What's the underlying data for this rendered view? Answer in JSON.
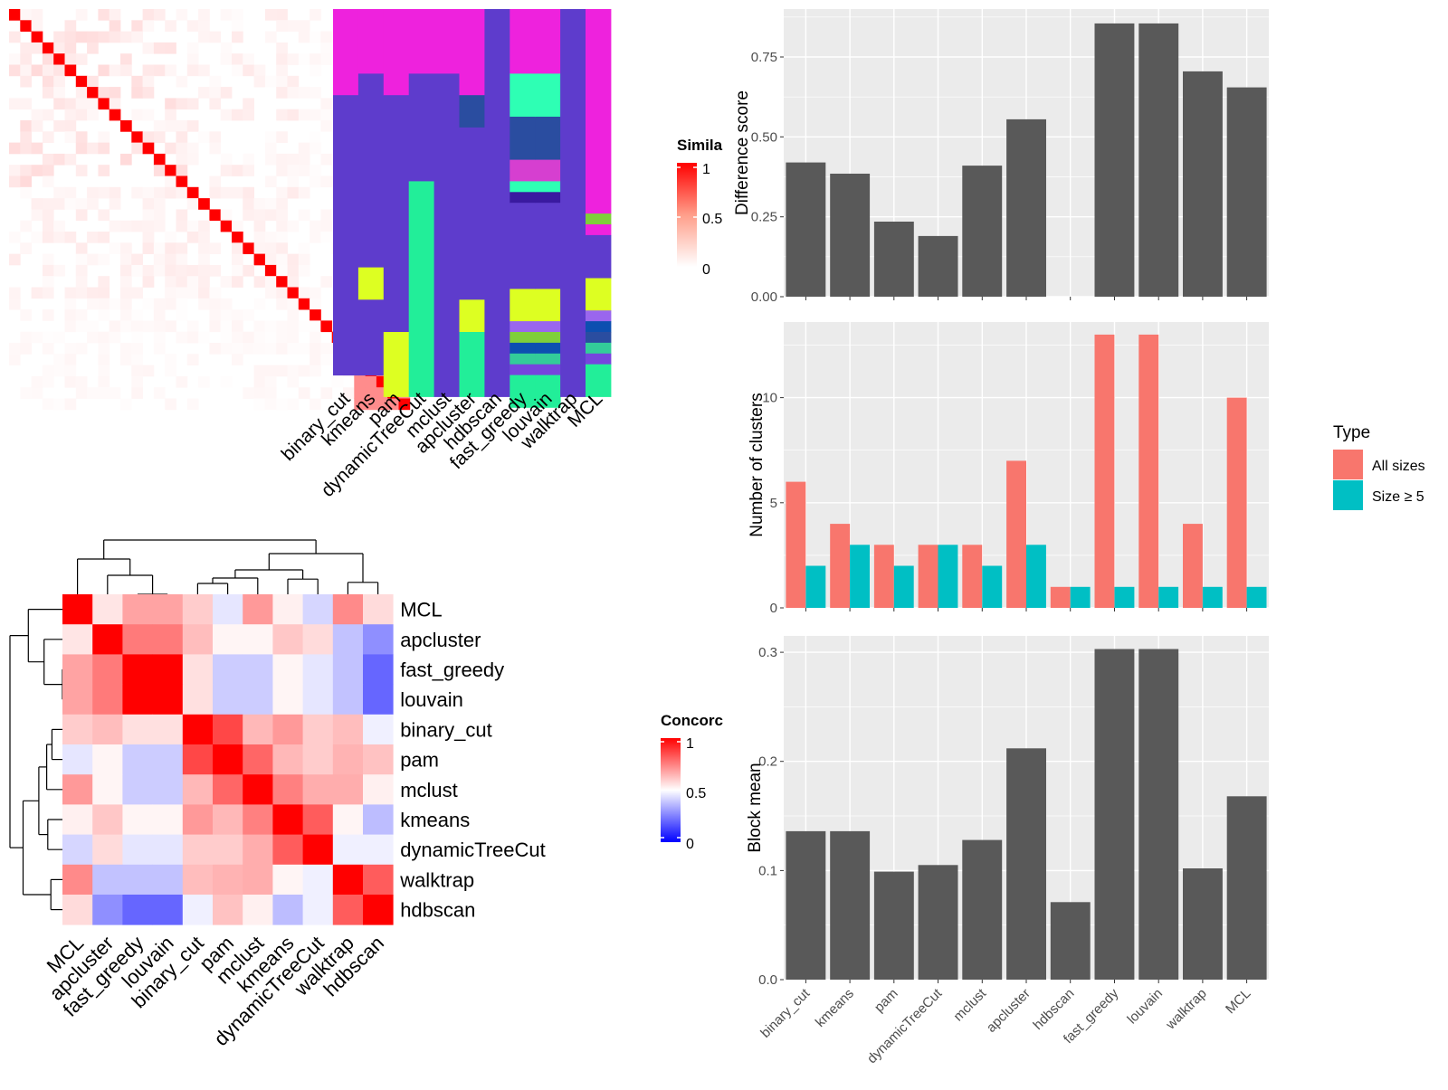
{
  "colors": {
    "panel_bg": "#ebebeb",
    "grid": "#ffffff",
    "bar": "#595959",
    "all_sizes": "#f8766d",
    "size_ge5": "#00bfc4",
    "sim_high": "#ff0000",
    "sim_low": "#ffffff",
    "conc_low": "#0000ff",
    "conc_mid": "#ffffff",
    "conc_high": "#ff0000"
  },
  "similarity_legend": {
    "title": "Simila",
    "ticks": [
      "1",
      "0.5",
      "0"
    ]
  },
  "concordance_legend": {
    "title": "Concorc",
    "ticks": [
      "1",
      "0.5",
      "0"
    ]
  },
  "chart_data": [
    {
      "type": "heatmap",
      "id": "similarity-matrix",
      "size": 36,
      "diag_value": 1,
      "block_value": 0.45,
      "legend": "Simila"
    },
    {
      "type": "heatmap",
      "id": "cluster-assignments",
      "columns": [
        "binary_cut",
        "kmeans",
        "pam",
        "dynamicTreeCut",
        "mclust",
        "apcluster",
        "hdbscan",
        "fast_greedy",
        "louvain",
        "walktrap",
        "MCL"
      ],
      "palette": {
        "A": "#ee22dd",
        "B": "#5e3ccc",
        "C": "#ddff22",
        "D": "#22ee99",
        "E": "#2a4da0",
        "F": "#2effb4",
        "G": "#d63fd0",
        "H": "#3a1aa0",
        "I": "#7fcf3a",
        "J": "#9a66ee",
        "K": "#0d4fb0",
        "L": "#33cc99",
        "M": "#7744dd"
      },
      "segments": [
        [
          "A:8",
          "B:26"
        ],
        [
          "A:6",
          "B:18",
          "C:3",
          "B:7"
        ],
        [
          "A:8",
          "B:22",
          "C:6"
        ],
        [
          "A:6",
          "B:10",
          "D:20"
        ],
        [
          "A:6",
          "B:30"
        ],
        [
          "A:8",
          "E:3",
          "B:16",
          "C:3",
          "D:6"
        ],
        [
          "B:36"
        ],
        [
          "A:6",
          "F:4",
          "E:4",
          "G:2",
          "F:1",
          "H:1",
          "B:8",
          "C:3",
          "J:1",
          "I:1",
          "K:1",
          "L:1",
          "M:1",
          "D:3"
        ],
        [
          "A:6",
          "F:4",
          "E:4",
          "G:2",
          "F:1",
          "H:1",
          "B:8",
          "C:3",
          "J:1",
          "I:1",
          "K:1",
          "L:1",
          "M:1",
          "D:3"
        ],
        [
          "B:36"
        ],
        [
          "A:19",
          "I:1",
          "A:1",
          "B:4",
          "C:3",
          "J:1",
          "K:1",
          "E:1",
          "L:1",
          "M:1",
          "D:3"
        ]
      ]
    },
    {
      "type": "heatmap",
      "id": "concordance",
      "labels": [
        "MCL",
        "apcluster",
        "fast_greedy",
        "louvain",
        "binary_cut",
        "pam",
        "mclust",
        "kmeans",
        "dynamicTreeCut",
        "walktrap",
        "hdbscan"
      ],
      "legend": "Concorc",
      "matrix": [
        [
          1.0,
          0.55,
          0.68,
          0.68,
          0.6,
          0.45,
          0.7,
          0.53,
          0.42,
          0.73,
          0.57
        ],
        [
          0.55,
          1.0,
          0.76,
          0.76,
          0.63,
          0.52,
          0.52,
          0.61,
          0.57,
          0.38,
          0.28
        ],
        [
          0.68,
          0.76,
          1.0,
          1.0,
          0.56,
          0.4,
          0.4,
          0.52,
          0.45,
          0.38,
          0.2
        ],
        [
          0.68,
          0.76,
          1.0,
          1.0,
          0.56,
          0.4,
          0.4,
          0.52,
          0.45,
          0.38,
          0.2
        ],
        [
          0.6,
          0.63,
          0.56,
          0.56,
          1.0,
          0.86,
          0.64,
          0.7,
          0.6,
          0.63,
          0.47
        ],
        [
          0.45,
          0.52,
          0.4,
          0.4,
          0.86,
          1.0,
          0.8,
          0.64,
          0.6,
          0.65,
          0.62
        ],
        [
          0.7,
          0.52,
          0.4,
          0.4,
          0.64,
          0.8,
          1.0,
          0.75,
          0.66,
          0.66,
          0.53
        ],
        [
          0.53,
          0.61,
          0.52,
          0.52,
          0.7,
          0.64,
          0.75,
          1.0,
          0.82,
          0.52,
          0.37
        ],
        [
          0.42,
          0.57,
          0.45,
          0.45,
          0.6,
          0.6,
          0.66,
          0.82,
          1.0,
          0.47,
          0.47
        ],
        [
          0.73,
          0.38,
          0.38,
          0.38,
          0.63,
          0.65,
          0.66,
          0.52,
          0.47,
          1.0,
          0.82
        ],
        [
          0.57,
          0.28,
          0.2,
          0.2,
          0.47,
          0.62,
          0.53,
          0.37,
          0.47,
          0.82,
          1.0
        ]
      ]
    },
    {
      "type": "bar",
      "id": "difference-score",
      "categories": [
        "binary_cut",
        "kmeans",
        "pam",
        "dynamicTreeCut",
        "mclust",
        "apcluster",
        "hdbscan",
        "fast_greedy",
        "louvain",
        "walktrap",
        "MCL"
      ],
      "values": [
        0.42,
        0.385,
        0.235,
        0.19,
        0.41,
        0.555,
        0,
        0.855,
        0.855,
        0.705,
        0.655
      ],
      "ylabel": "Difference score",
      "ylim": [
        0,
        0.9
      ],
      "yticks": [
        0,
        0.25,
        0.5,
        0.75
      ],
      "ytick_labels": [
        "0.00",
        "0.25",
        "0.50",
        "0.75"
      ],
      "grid": true
    },
    {
      "type": "bar",
      "id": "number-of-clusters",
      "categories": [
        "binary_cut",
        "kmeans",
        "pam",
        "dynamicTreeCut",
        "mclust",
        "apcluster",
        "hdbscan",
        "fast_greedy",
        "louvain",
        "walktrap",
        "MCL"
      ],
      "series": [
        {
          "name": "All sizes",
          "values": [
            6,
            4,
            3,
            3,
            3,
            7,
            1,
            13,
            13,
            4,
            10
          ]
        },
        {
          "name": "Size ≥ 5",
          "values": [
            2,
            3,
            2,
            3,
            2,
            3,
            1,
            1,
            1,
            1,
            1
          ]
        }
      ],
      "ylabel": "Number of clusters",
      "ylim": [
        0,
        13.6
      ],
      "yticks": [
        0,
        5,
        10
      ],
      "ytick_labels": [
        "0",
        "5",
        "10"
      ],
      "legend": {
        "title": "Type",
        "position": "right"
      },
      "grid": true
    },
    {
      "type": "bar",
      "id": "block-mean",
      "categories": [
        "binary_cut",
        "kmeans",
        "pam",
        "dynamicTreeCut",
        "mclust",
        "apcluster",
        "hdbscan",
        "fast_greedy",
        "louvain",
        "walktrap",
        "MCL"
      ],
      "values": [
        0.136,
        0.136,
        0.099,
        0.105,
        0.128,
        0.212,
        0.071,
        0.303,
        0.303,
        0.102,
        0.168
      ],
      "ylabel": "Block mean",
      "ylim": [
        0,
        0.315
      ],
      "yticks": [
        0,
        0.1,
        0.2,
        0.3
      ],
      "ytick_labels": [
        "0.0",
        "0.1",
        "0.2",
        "0.3"
      ],
      "grid": true
    }
  ]
}
